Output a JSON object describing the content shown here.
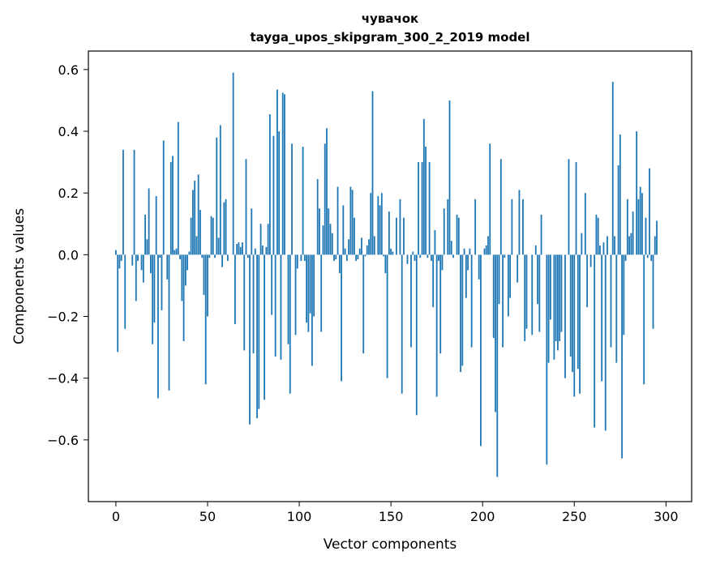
{
  "chart_data": {
    "type": "bar",
    "title": "чувачок",
    "subtitle": "tayga_upos_skipgram_300_2_2019 model",
    "xlabel": "Vector components",
    "ylabel": "Components values",
    "xlim": [
      -15,
      314
    ],
    "ylim": [
      -0.8,
      0.66
    ],
    "xticks": [
      0,
      50,
      100,
      150,
      200,
      250,
      300
    ],
    "xtick_labels": [
      "0",
      "50",
      "100",
      "150",
      "200",
      "250",
      "300"
    ],
    "yticks": [
      -0.6,
      -0.4,
      -0.2,
      0.0,
      0.2,
      0.4,
      0.6
    ],
    "ytick_labels": [
      "−0.6",
      "−0.4",
      "−0.2",
      "0.0",
      "0.2",
      "0.4",
      "0.6"
    ],
    "grid": false,
    "bar_color": "#1f77b4",
    "x_start": 0,
    "values": [
      0.015,
      -0.315,
      -0.045,
      -0.02,
      0.34,
      -0.24,
      0.0,
      0.0,
      0.0,
      -0.035,
      0.34,
      -0.15,
      -0.02,
      0.0,
      -0.05,
      -0.09,
      0.13,
      0.05,
      0.215,
      -0.06,
      -0.29,
      -0.22,
      0.19,
      -0.465,
      -0.01,
      -0.18,
      0.37,
      0.0,
      -0.08,
      -0.44,
      0.3,
      0.32,
      0.015,
      0.02,
      0.43,
      -0.015,
      -0.15,
      -0.28,
      -0.1,
      -0.05,
      0.01,
      0.12,
      0.21,
      0.24,
      0.06,
      0.26,
      0.145,
      -0.01,
      -0.13,
      -0.42,
      -0.2,
      -0.01,
      0.125,
      0.12,
      -0.01,
      0.38,
      0.055,
      0.42,
      -0.04,
      0.17,
      0.18,
      -0.02,
      0.0,
      0.0,
      0.59,
      -0.225,
      0.035,
      0.04,
      0.025,
      0.04,
      -0.31,
      0.31,
      -0.01,
      -0.55,
      0.15,
      -0.32,
      0.02,
      -0.53,
      -0.5,
      0.1,
      0.03,
      -0.47,
      0.025,
      0.1,
      0.455,
      -0.195,
      0.385,
      -0.33,
      0.535,
      0.4,
      -0.34,
      0.525,
      0.52,
      0.0,
      -0.29,
      -0.45,
      0.36,
      0.0,
      -0.26,
      -0.045,
      0.0,
      -0.02,
      0.35,
      -0.02,
      -0.22,
      -0.25,
      -0.19,
      -0.36,
      -0.2,
      0.0,
      0.245,
      0.15,
      -0.25,
      0.095,
      0.36,
      0.41,
      0.15,
      0.1,
      0.07,
      -0.02,
      -0.015,
      0.22,
      -0.06,
      -0.41,
      0.16,
      0.02,
      -0.02,
      0.05,
      0.22,
      0.21,
      0.12,
      -0.02,
      -0.015,
      0.02,
      0.055,
      -0.32,
      -0.005,
      0.03,
      0.05,
      0.2,
      0.53,
      0.06,
      0.0,
      0.19,
      0.16,
      0.2,
      -0.005,
      -0.06,
      -0.4,
      0.14,
      0.02,
      0.01,
      0.0,
      0.12,
      0.0,
      0.18,
      -0.45,
      0.12,
      0.0,
      -0.03,
      0.0,
      -0.3,
      0.01,
      -0.02,
      -0.52,
      0.3,
      -0.01,
      0.3,
      0.44,
      0.35,
      -0.01,
      0.3,
      -0.02,
      -0.17,
      0.08,
      -0.46,
      -0.02,
      -0.32,
      -0.05,
      0.15,
      0.0,
      0.18,
      0.5,
      0.045,
      -0.01,
      0.0,
      0.13,
      0.12,
      -0.38,
      -0.36,
      0.02,
      -0.14,
      -0.05,
      0.02,
      -0.3,
      0.0,
      0.18,
      0.0,
      -0.08,
      -0.62,
      0.0,
      0.02,
      0.03,
      0.06,
      0.36,
      0.0,
      -0.27,
      -0.51,
      -0.72,
      -0.16,
      0.31,
      -0.3,
      -0.01,
      0.0,
      -0.2,
      -0.14,
      0.18,
      0.0,
      0.0,
      -0.09,
      0.21,
      0.0,
      0.18,
      -0.28,
      -0.24,
      0.0,
      0.0,
      -0.26,
      0.0,
      0.03,
      -0.16,
      -0.25,
      0.13,
      0.0,
      0.0,
      -0.68,
      -0.35,
      -0.21,
      0.0,
      -0.34,
      -0.28,
      -0.31,
      -0.28,
      -0.25,
      0.0,
      -0.4,
      0.0,
      0.31,
      -0.33,
      -0.38,
      -0.46,
      0.3,
      -0.37,
      -0.45,
      0.07,
      0.0,
      0.2,
      -0.17,
      0.0,
      -0.04,
      0.0,
      -0.56,
      0.13,
      0.12,
      0.03,
      -0.41,
      0.04,
      -0.57,
      0.06,
      0.0,
      -0.3,
      0.56,
      0.06,
      -0.35,
      0.29,
      0.39,
      -0.66,
      -0.26,
      -0.02,
      0.18,
      0.06,
      0.07,
      0.14,
      0.0,
      0.4,
      0.18,
      0.22,
      0.2,
      -0.42,
      0.12,
      -0.01,
      0.28,
      -0.02,
      -0.24,
      0.06,
      0.11
    ]
  }
}
